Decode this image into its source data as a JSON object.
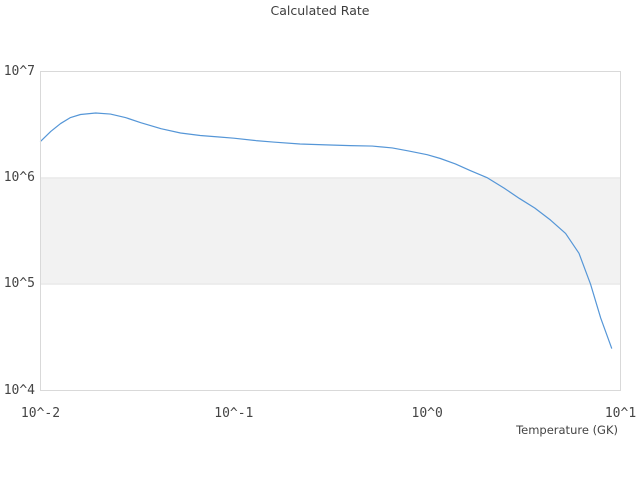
{
  "chart_data": {
    "type": "line",
    "title": "Calculated Rate",
    "xlabel": "Temperature (GK)",
    "ylabel": "",
    "x_scale": "log",
    "y_scale": "log",
    "xlim": [
      0.01,
      10
    ],
    "ylim": [
      10000.0,
      10000000.0
    ],
    "grid": "horizontal",
    "legend": "none",
    "shaded_band_y": [
      100000.0,
      1000000.0
    ],
    "x_ticks": [
      {
        "value": 0.01,
        "label": "10^-2"
      },
      {
        "value": 0.1,
        "label": "10^-1"
      },
      {
        "value": 1,
        "label": "10^0"
      },
      {
        "value": 10,
        "label": "10^1"
      }
    ],
    "y_ticks": [
      {
        "value": 10000.0,
        "label": "10^4"
      },
      {
        "value": 100000.0,
        "label": "10^5"
      },
      {
        "value": 1000000.0,
        "label": "10^6"
      },
      {
        "value": 10000000.0,
        "label": "10^7"
      }
    ],
    "series": [
      {
        "name": "calculated rate",
        "color": "#5596d7",
        "x": [
          0.01,
          0.0113,
          0.0127,
          0.0143,
          0.0161,
          0.0193,
          0.023,
          0.0275,
          0.033,
          0.042,
          0.053,
          0.067,
          0.084,
          0.1,
          0.13,
          0.16,
          0.22,
          0.3,
          0.4,
          0.52,
          0.66,
          0.8,
          1.0,
          1.17,
          1.4,
          1.67,
          2.05,
          2.5,
          3.0,
          3.6,
          4.35,
          5.2,
          6.1,
          7.0,
          7.9,
          9.0
        ],
        "y": [
          2200000.0,
          2730000.0,
          3240000.0,
          3690000.0,
          3940000.0,
          4070000.0,
          3980000.0,
          3690000.0,
          3300000.0,
          2900000.0,
          2640000.0,
          2500000.0,
          2420000.0,
          2360000.0,
          2240000.0,
          2170000.0,
          2080000.0,
          2040000.0,
          2010000.0,
          1990000.0,
          1910000.0,
          1790000.0,
          1650000.0,
          1520000.0,
          1350000.0,
          1170000.0,
          1000000.0,
          800000.0,
          640000.0,
          520000.0,
          400000.0,
          300000.0,
          195000.0,
          100000.0,
          48000.0,
          25000.0
        ]
      }
    ]
  },
  "style": {
    "background": "#ffffff",
    "band_color": "#f2f2f2",
    "grid_color": "#e3e3e3",
    "border_color": "#d9d9d9",
    "title_color": "#3d3d3d",
    "tick_color": "#444444",
    "line_color": "#5596d7"
  }
}
